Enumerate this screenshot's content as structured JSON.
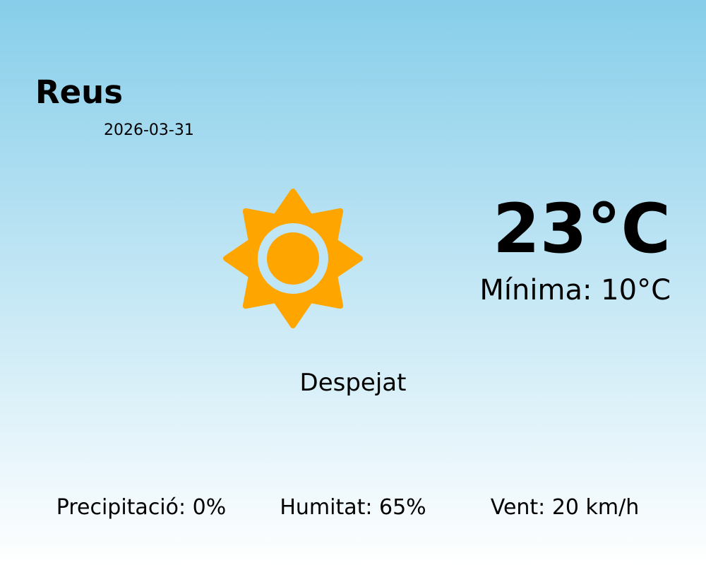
{
  "location": {
    "city": "Reus",
    "date": "2026-03-31"
  },
  "current": {
    "temperature": "23°C",
    "minimum": "Mínima: 10°C",
    "condition": "Despejat",
    "icon": "sun-icon"
  },
  "details": {
    "precipitation": "Precipitació: 0%",
    "humidity": "Humitat: 65%",
    "wind": "Vent: 20 km/h"
  },
  "colors": {
    "sun": "#ffa500",
    "sky_top": "#87ceea",
    "sky_bottom": "#ffffff"
  }
}
